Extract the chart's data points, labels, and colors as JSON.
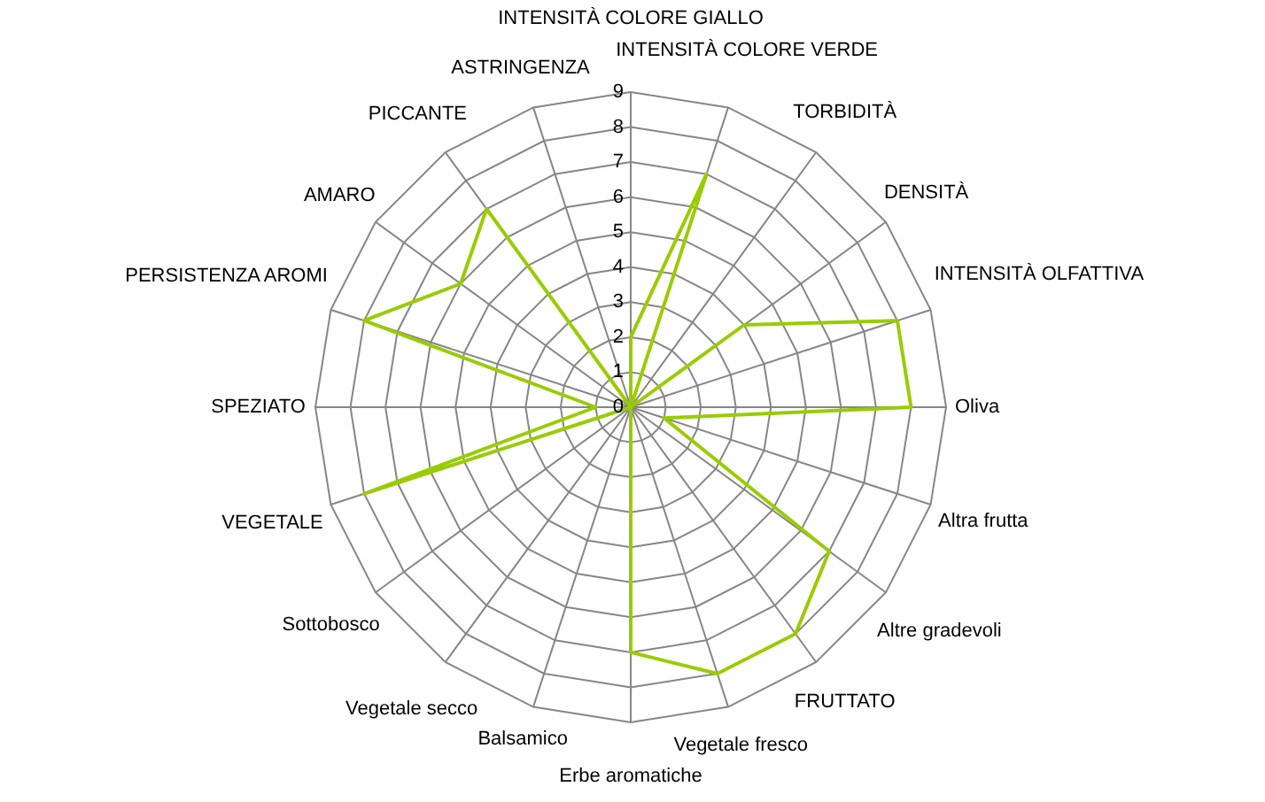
{
  "chart_data": {
    "type": "radar",
    "categories": [
      "INTENSITÀ COLORE GIALLO",
      "INTENSITÀ COLORE VERDE",
      "TORBIDITÀ",
      "DENSITÀ",
      "INTENSITÀ OLFATTIVA",
      "Oliva",
      "Altra frutta",
      "Altre gradevoli",
      "FRUTTATO",
      "Vegetale fresco",
      "Erbe aromatiche",
      "Balsamico",
      "Vegetale secco",
      "Sottobosco",
      "VEGETALE",
      "SPEZIATO",
      "PERSISTENZA AROMI",
      "AMARO",
      "PICCANTE",
      "ASTRINGENZA"
    ],
    "series": [
      {
        "color": "#99cc00",
        "values": [
          2,
          7,
          0,
          4,
          8,
          8,
          1,
          7,
          8,
          8,
          7,
          0,
          0,
          0,
          8,
          1,
          8,
          6,
          7,
          0
        ]
      }
    ],
    "ylim": [
      0,
      9
    ],
    "yticks": [
      0,
      1,
      2,
      3,
      4,
      5,
      6,
      7,
      8,
      9
    ],
    "grid": true
  }
}
